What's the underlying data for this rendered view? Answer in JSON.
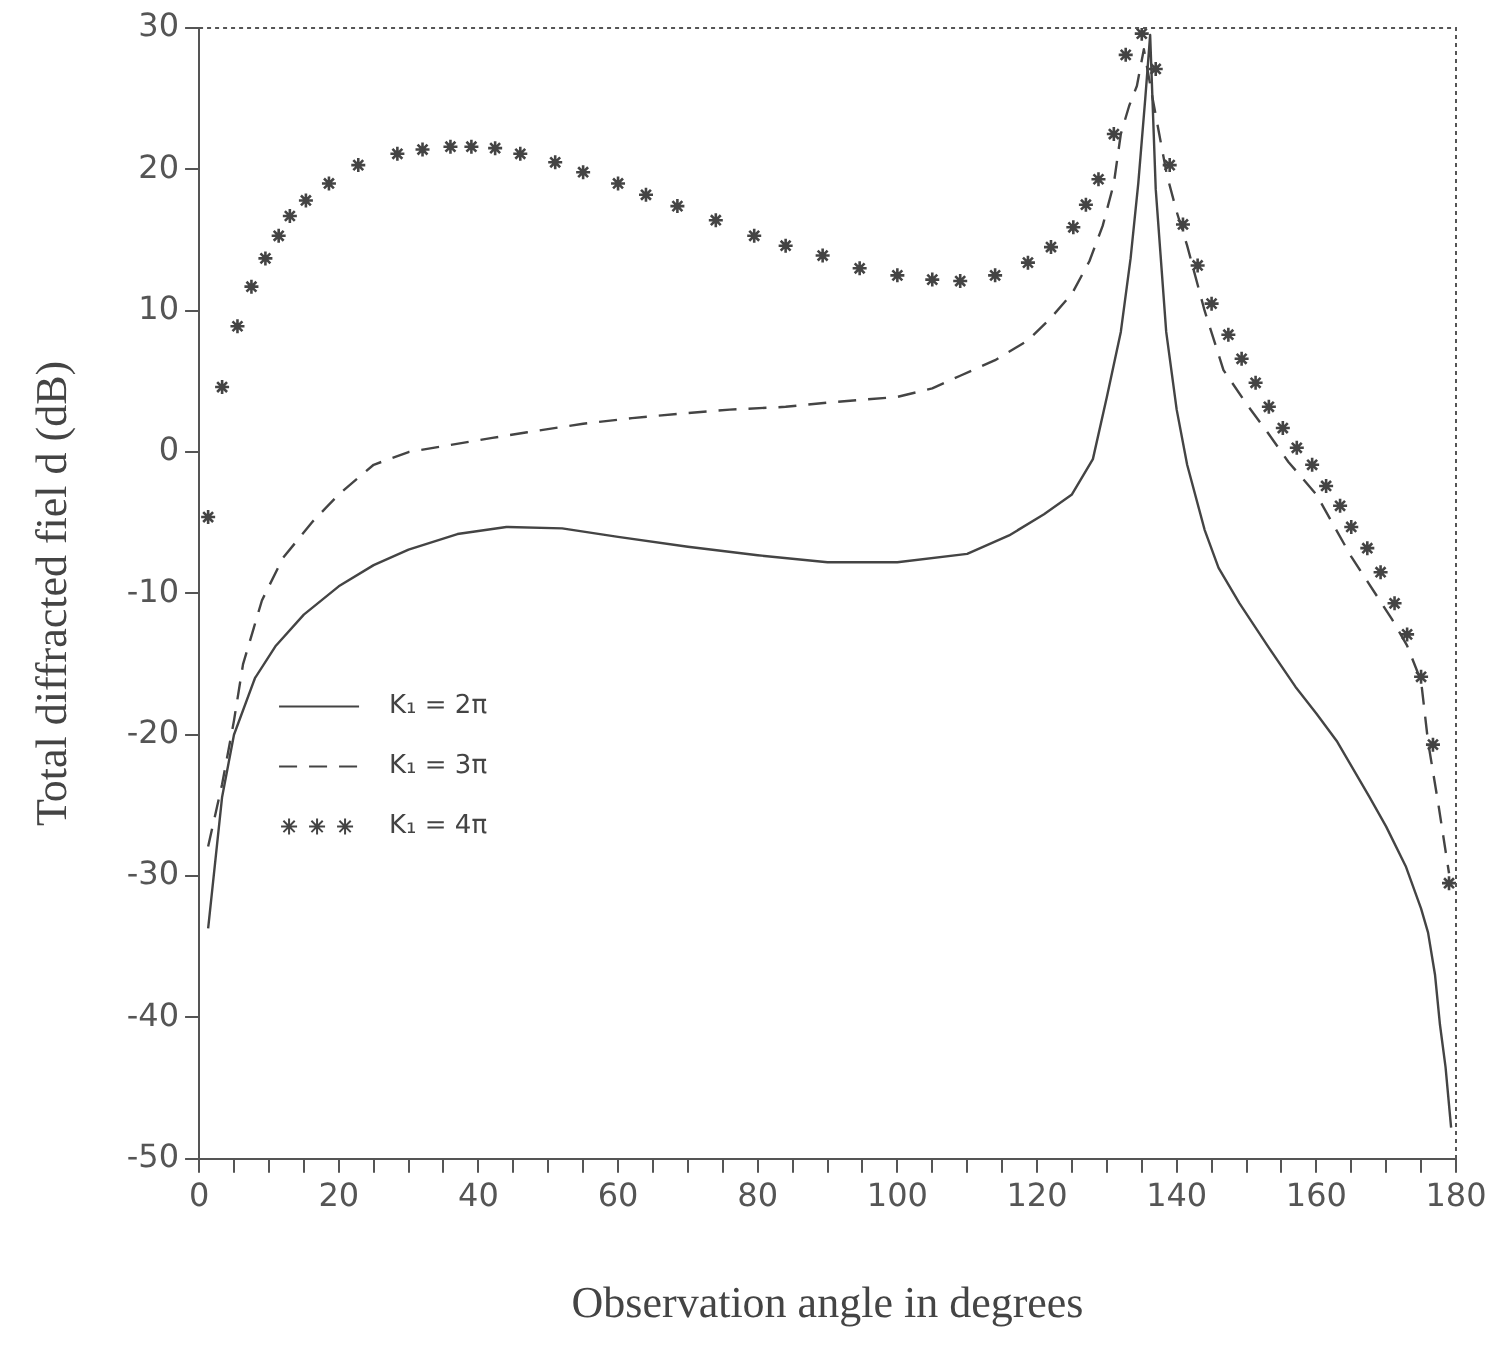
{
  "chart_data": {
    "type": "line",
    "xlabel": "Observation angle in degrees",
    "ylabel": "Total diffracted fiel d (dB)",
    "xlim": [
      0,
      180
    ],
    "ylim": [
      -50,
      30
    ],
    "xticks": [
      0,
      {
        "value": 5,
        "label": null
      },
      {
        "value": 10,
        "label": null
      },
      {
        "value": 15,
        "label": null
      },
      20,
      {
        "value": 25,
        "label": null
      },
      {
        "value": 30,
        "label": null
      },
      {
        "value": 35,
        "label": null
      },
      40,
      {
        "value": 45,
        "label": null
      },
      {
        "value": 50,
        "label": null
      },
      {
        "value": 55,
        "label": null
      },
      60,
      {
        "value": 65,
        "label": null
      },
      {
        "value": 70,
        "label": null
      },
      {
        "value": 75,
        "label": null
      },
      80,
      {
        "value": 85,
        "label": null
      },
      {
        "value": 90,
        "label": null
      },
      {
        "value": 95,
        "label": null
      },
      100,
      {
        "value": 105,
        "label": null
      },
      {
        "value": 110,
        "label": null
      },
      {
        "value": 115,
        "label": null
      },
      120,
      {
        "value": 125,
        "label": null
      },
      {
        "value": 130,
        "label": null
      },
      {
        "value": 135,
        "label": null
      },
      140,
      {
        "value": 145,
        "label": null
      },
      {
        "value": 150,
        "label": null
      },
      {
        "value": 155,
        "label": null
      },
      160,
      {
        "value": 165,
        "label": null
      },
      {
        "value": 170,
        "label": null
      },
      {
        "value": 175,
        "label": null
      },
      180
    ],
    "yticks": [
      -50,
      -40,
      -30,
      -20,
      -10,
      0,
      10,
      20,
      30
    ],
    "grid": false,
    "legend": "left",
    "series": [
      {
        "name": "K₁ = 2π",
        "color": "#444444",
        "line_style": "solid",
        "marker": "none",
        "x": [
          1.3,
          3.3,
          5,
          8,
          11,
          15,
          20,
          25,
          30,
          37,
          44,
          52,
          60,
          70,
          80,
          90,
          100,
          110,
          116,
          121,
          125,
          128,
          130,
          132,
          133.4,
          134.5,
          135.5,
          136.2,
          137,
          138.5,
          140,
          141.5,
          144,
          146,
          149,
          153,
          157,
          160,
          163,
          167.6,
          170,
          172.8,
          175,
          176,
          177,
          177.7,
          178.5,
          179.3
        ],
        "values": [
          -33.7,
          -24.4,
          -20,
          -16,
          -13.7,
          -11.5,
          -9.5,
          -8,
          -6.9,
          -5.8,
          -5.3,
          -5.4,
          -6,
          -6.7,
          -7.3,
          -7.8,
          -7.8,
          -7.2,
          -5.9,
          -4.4,
          -3,
          -0.5,
          3.9,
          8.5,
          13.7,
          19,
          25,
          29.5,
          18.6,
          8.5,
          3,
          -0.9,
          -5.5,
          -8.2,
          -10.7,
          -13.7,
          -16.6,
          -18.5,
          -20.5,
          -24.4,
          -26.5,
          -29.3,
          -32.3,
          -34,
          -37,
          -40.5,
          -43.5,
          -47.8
        ]
      },
      {
        "name": "K₁ = 3π",
        "color": "#444444",
        "line_style": "dashed",
        "marker": "none",
        "x": [
          1.3,
          3.3,
          5,
          6.3,
          9,
          12,
          16.3,
          20,
          25,
          30,
          36,
          42,
          47,
          55,
          62,
          68.5,
          76,
          84,
          90,
          100,
          105,
          109,
          114,
          118.7,
          122,
          125,
          127.5,
          129.4,
          131,
          132,
          133.2,
          134.3,
          135.3,
          136.6,
          137.5,
          138.6,
          140,
          141.5,
          144,
          146.7,
          150,
          153,
          156,
          160,
          165,
          170.8,
          173,
          175,
          176,
          177.5,
          179
        ],
        "values": [
          -27.9,
          -23.5,
          -19,
          -15,
          -10.5,
          -7.5,
          -4.9,
          -3,
          -0.9,
          0,
          0.5,
          1,
          1.4,
          2,
          2.4,
          2.7,
          3,
          3.2,
          3.5,
          3.9,
          4.5,
          5.4,
          6.5,
          7.9,
          9.5,
          11.2,
          13.5,
          16,
          19,
          22.5,
          24.5,
          25.9,
          28.5,
          24.9,
          22.5,
          19.6,
          17,
          14.6,
          10,
          5.8,
          3.4,
          1.4,
          -0.7,
          -3,
          -7.4,
          -11.8,
          -13.7,
          -16.2,
          -20.5,
          -25,
          -29.8
        ]
      },
      {
        "name": "K₁ = 4π",
        "color": "#444444",
        "type": "scatter",
        "marker": "cross",
        "x": [
          1.3,
          3.3,
          5.5,
          7.5,
          9.5,
          11.4,
          13,
          15.3,
          18.6,
          22.8,
          28.4,
          32,
          36,
          39,
          42.4,
          46,
          51,
          55,
          60,
          64,
          68.5,
          74,
          79.5,
          84,
          89.3,
          94.6,
          100,
          105,
          109,
          114,
          118.7,
          122,
          125.2,
          127,
          128.8,
          131,
          132.7,
          135,
          137,
          139,
          140.9,
          143,
          145,
          147.4,
          149.3,
          151.3,
          153.2,
          155.2,
          157.2,
          159.4,
          161.4,
          163.4,
          165,
          167.3,
          169.2,
          171.2,
          173,
          175,
          176.7,
          179
        ],
        "values": [
          -4.6,
          4.6,
          8.9,
          11.7,
          13.7,
          15.3,
          16.7,
          17.8,
          19,
          20.3,
          21.1,
          21.4,
          21.6,
          21.6,
          21.5,
          21.1,
          20.5,
          19.8,
          19,
          18.2,
          17.4,
          16.4,
          15.3,
          14.6,
          13.9,
          13,
          12.5,
          12.2,
          12.1,
          12.5,
          13.4,
          14.5,
          15.9,
          17.5,
          19.3,
          22.5,
          28.1,
          29.6,
          27.1,
          20.3,
          16.1,
          13.2,
          10.5,
          8.3,
          6.6,
          4.9,
          3.2,
          1.7,
          0.3,
          -0.9,
          -2.4,
          -3.8,
          -5.3,
          -6.8,
          -8.5,
          -10.7,
          -12.9,
          -15.9,
          -20.7,
          -30.5
        ]
      }
    ]
  }
}
